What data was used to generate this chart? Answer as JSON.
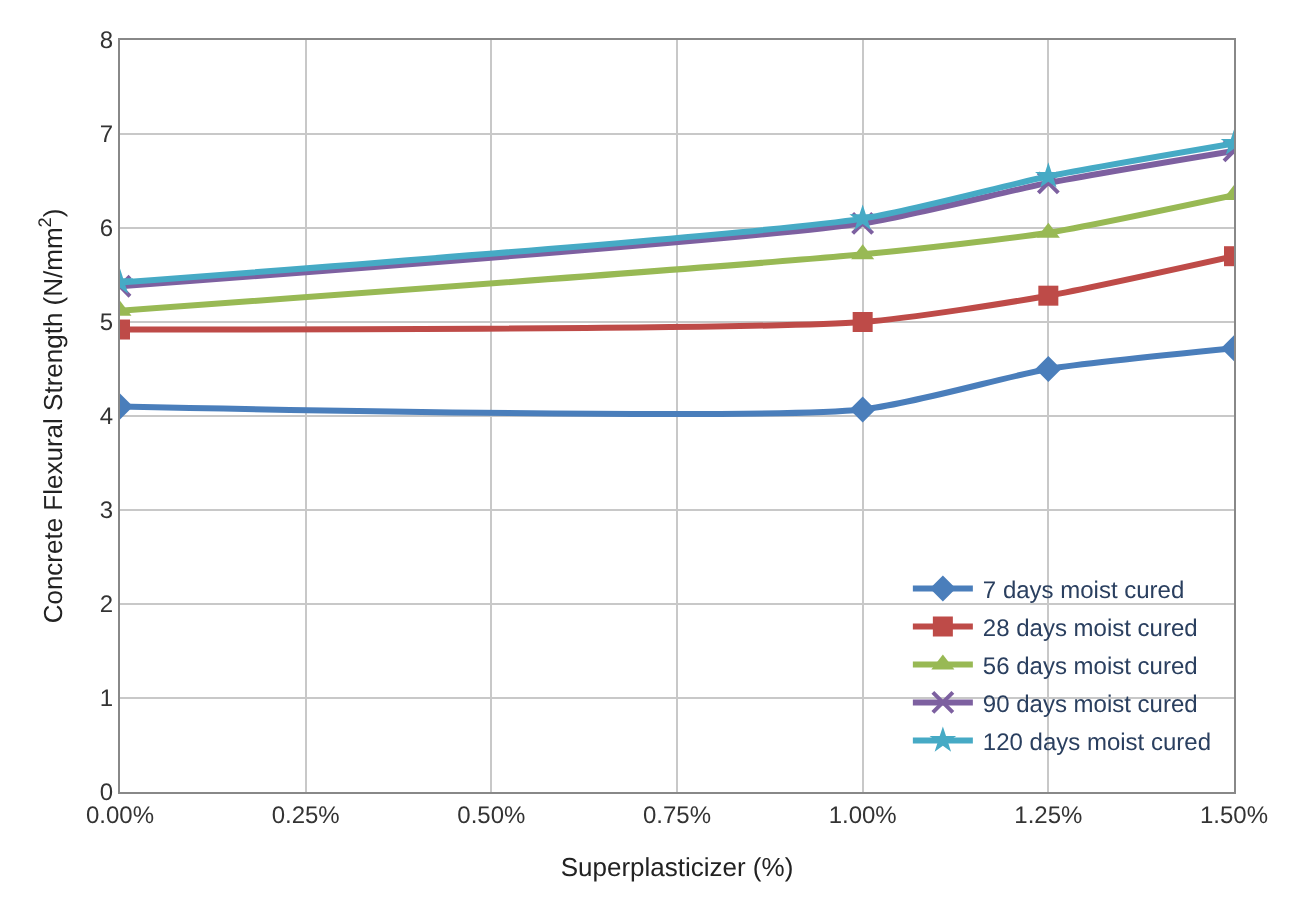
{
  "chart_data": {
    "type": "line",
    "xlabel": "Superplasticizer (%)",
    "ylabel": "Concrete Flexural Strength (N/mm$^{2}$)",
    "x": [
      0,
      1.0,
      1.25,
      1.5
    ],
    "series": [
      {
        "name": "7 days moist cured",
        "color": "#4a7ebb",
        "marker": "diamond",
        "values": [
          4.1,
          4.07,
          4.5,
          4.72
        ]
      },
      {
        "name": "28 days moist cured",
        "color": "#be4b48",
        "marker": "square",
        "values": [
          4.92,
          5.0,
          5.28,
          5.7
        ]
      },
      {
        "name": "56 days moist cured",
        "color": "#98b954",
        "marker": "triangle",
        "values": [
          5.12,
          5.72,
          5.95,
          6.35
        ]
      },
      {
        "name": "90 days moist cured",
        "color": "#7d60a0",
        "marker": "cross",
        "values": [
          5.38,
          6.05,
          6.48,
          6.82
        ]
      },
      {
        "name": "120 days moist cured",
        "color": "#46aac5",
        "marker": "star",
        "values": [
          5.42,
          6.1,
          6.55,
          6.9
        ]
      }
    ],
    "xlim": [
      0,
      1.5
    ],
    "xticks": [
      {
        "value": 0,
        "label": "0.00%"
      },
      {
        "value": 0.25,
        "label": "0.25%"
      },
      {
        "value": 0.5,
        "label": "0.50%"
      },
      {
        "value": 0.75,
        "label": "0.75%"
      },
      {
        "value": 1.0,
        "label": "1.00%"
      },
      {
        "value": 1.25,
        "label": "1.25%"
      },
      {
        "value": 1.5,
        "label": "1.50%"
      }
    ],
    "ylim": [
      0,
      8
    ],
    "yticks": [
      0,
      1,
      2,
      3,
      4,
      5,
      6,
      7,
      8
    ],
    "grid": true,
    "legend": "bottom right",
    "line_style": "solid"
  }
}
